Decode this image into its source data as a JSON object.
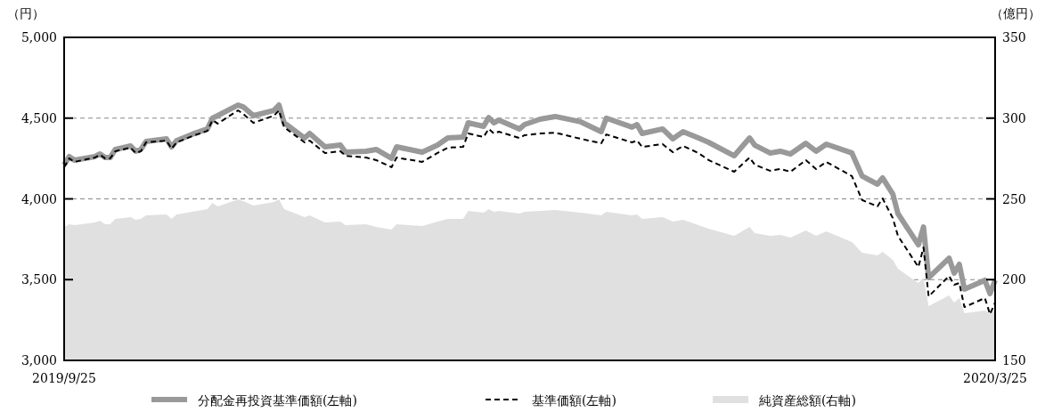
{
  "chart_data": {
    "type": "line",
    "ylabel": "（円）",
    "y2label": "（億円）",
    "x": [
      "2019-09-25",
      "2019-09-26",
      "2019-09-27",
      "2019-10-01",
      "2019-10-02",
      "2019-10-03",
      "2019-10-04",
      "2019-10-05",
      "2019-10-08",
      "2019-10-09",
      "2019-10-10",
      "2019-10-11",
      "2019-10-15",
      "2019-10-16",
      "2019-10-17",
      "2019-10-20",
      "2019-10-23",
      "2019-10-24",
      "2019-10-25",
      "2019-10-29",
      "2019-10-30",
      "2019-11-01",
      "2019-11-05",
      "2019-11-06",
      "2019-11-07",
      "2019-11-11",
      "2019-11-12",
      "2019-11-15",
      "2019-11-18",
      "2019-11-19",
      "2019-11-23",
      "2019-11-25",
      "2019-11-28",
      "2019-11-29",
      "2019-12-04",
      "2019-12-07",
      "2019-12-09",
      "2019-12-12",
      "2019-12-13",
      "2019-12-16",
      "2019-12-17",
      "2019-12-18",
      "2019-12-19",
      "2019-12-23",
      "2019-12-24",
      "2019-12-27",
      "2019-12-30",
      "2020-01-04",
      "2020-01-08",
      "2020-01-09",
      "2020-01-14",
      "2020-01-15",
      "2020-01-16",
      "2020-01-20",
      "2020-01-22",
      "2020-01-24",
      "2020-01-27",
      "2020-01-29",
      "2020-02-03",
      "2020-02-06",
      "2020-02-07",
      "2020-02-10",
      "2020-02-12",
      "2020-02-14",
      "2020-02-17",
      "2020-02-19",
      "2020-02-21",
      "2020-02-26",
      "2020-02-28",
      "2020-03-02",
      "2020-03-03",
      "2020-03-05",
      "2020-03-06",
      "2020-03-10",
      "2020-03-11",
      "2020-03-12",
      "2020-03-16",
      "2020-03-17",
      "2020-03-18",
      "2020-03-19",
      "2020-03-23",
      "2020-03-24",
      "2020-03-25"
    ],
    "xlim": [
      "2019-09-25",
      "2020-03-25"
    ],
    "xticks": [
      {
        "value": "2019-09-25",
        "label": "2019/9/25"
      },
      {
        "value": "2020-03-25",
        "label": "2020/3/25"
      }
    ],
    "ylim": [
      3000,
      5000
    ],
    "yticks": [
      {
        "value": 3000,
        "label": "3,000"
      },
      {
        "value": 3500,
        "label": "3,500"
      },
      {
        "value": 4000,
        "label": "4,000"
      },
      {
        "value": 4500,
        "label": "4,500"
      },
      {
        "value": 5000,
        "label": "5,000"
      }
    ],
    "y2lim": [
      150,
      350
    ],
    "y2ticks": [
      150,
      200,
      250,
      300,
      350
    ],
    "grid": "y",
    "legend": "bottom",
    "series": [
      {
        "name": "純資産総額(右軸)",
        "type": "area",
        "axis": "y2",
        "color": "#e0e0e0",
        "values": [
          232.6,
          234.3,
          233.7,
          235.4,
          236.5,
          234.3,
          234.3,
          237.6,
          238.7,
          237.0,
          237.6,
          239.8,
          240.4,
          237.6,
          240.4,
          242.0,
          243.7,
          247.5,
          245.3,
          249.7,
          248.6,
          245.9,
          248.1,
          249.7,
          243.7,
          238.7,
          239.8,
          235.4,
          236.0,
          233.7,
          234.3,
          232.6,
          231.0,
          234.3,
          233.2,
          236.0,
          237.6,
          237.6,
          242.6,
          241.4,
          243.7,
          242.0,
          242.6,
          240.9,
          242.0,
          242.6,
          243.1,
          241.4,
          239.8,
          242.0,
          239.8,
          240.4,
          237.6,
          238.7,
          236.0,
          237.0,
          233.7,
          231.5,
          227.1,
          232.6,
          228.8,
          227.1,
          227.7,
          226.0,
          230.4,
          227.1,
          229.9,
          223.3,
          216.7,
          215.0,
          217.2,
          212.2,
          206.7,
          197.9,
          201.2,
          183.6,
          190.2,
          185.8,
          188.6,
          179.2,
          180.9,
          179.2,
          180.3
        ]
      },
      {
        "name": "分配金再投資基準価額(左軸)",
        "line_style": "solid",
        "color": "#999999",
        "values": [
          4212,
          4262,
          4240,
          4262,
          4278,
          4256,
          4256,
          4306,
          4328,
          4295,
          4306,
          4355,
          4372,
          4322,
          4361,
          4400,
          4433,
          4500,
          4515,
          4581,
          4570,
          4515,
          4548,
          4581,
          4471,
          4377,
          4405,
          4322,
          4333,
          4289,
          4295,
          4306,
          4251,
          4322,
          4289,
          4333,
          4377,
          4383,
          4471,
          4449,
          4504,
          4471,
          4488,
          4433,
          4460,
          4493,
          4510,
          4477,
          4416,
          4500,
          4444,
          4460,
          4405,
          4433,
          4372,
          4416,
          4377,
          4350,
          4267,
          4377,
          4333,
          4284,
          4295,
          4278,
          4344,
          4295,
          4339,
          4284,
          4141,
          4091,
          4130,
          4030,
          3909,
          3716,
          3826,
          3512,
          3633,
          3540,
          3595,
          3441,
          3496,
          3413,
          3496
        ]
      },
      {
        "name": "基準価額(左軸)",
        "line_style": "dashed",
        "color": "#000000",
        "values": [
          4196,
          4251,
          4229,
          4256,
          4273,
          4251,
          4251,
          4295,
          4317,
          4284,
          4295,
          4350,
          4361,
          4311,
          4350,
          4388,
          4421,
          4488,
          4466,
          4548,
          4526,
          4471,
          4515,
          4548,
          4444,
          4350,
          4361,
          4284,
          4295,
          4267,
          4256,
          4240,
          4196,
          4256,
          4229,
          4284,
          4317,
          4322,
          4405,
          4383,
          4433,
          4405,
          4416,
          4377,
          4394,
          4405,
          4410,
          4372,
          4344,
          4399,
          4350,
          4361,
          4322,
          4339,
          4289,
          4328,
          4284,
          4240,
          4168,
          4256,
          4212,
          4174,
          4185,
          4168,
          4240,
          4185,
          4229,
          4141,
          3993,
          3953,
          4003,
          3881,
          3771,
          3578,
          3699,
          3396,
          3523,
          3468,
          3479,
          3330,
          3386,
          3286,
          3358
        ]
      }
    ]
  }
}
